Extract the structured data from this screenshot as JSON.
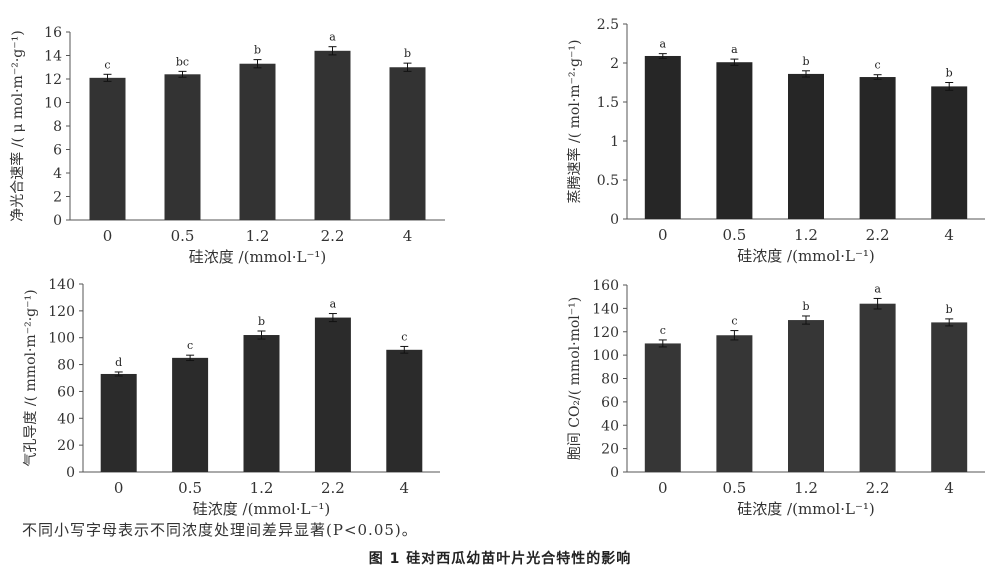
{
  "figure": {
    "note": "不同小写字母表示不同浓度处理间差异显著(P<0.05)。",
    "caption": "图 1   硅对西瓜幼苗叶片光合特性的影响"
  },
  "chart_data": [
    {
      "type": "bar",
      "xlabel": "硅浓度 /(mmol·L⁻¹)",
      "ylabel": "净光合速率 /( μ mol·m⁻²·g⁻¹)",
      "categories": [
        "0",
        "0.5",
        "1.2",
        "2.2",
        "4"
      ],
      "values": [
        12.1,
        12.4,
        13.3,
        14.4,
        13.0
      ],
      "errors": [
        0.3,
        0.25,
        0.35,
        0.35,
        0.35
      ],
      "letters": [
        "c",
        "bc",
        "b",
        "a",
        "b"
      ],
      "ylim": [
        0,
        16
      ],
      "yticks": [
        "0",
        "2",
        "4",
        "6",
        "8",
        "10",
        "12",
        "14",
        "16"
      ],
      "color": "#333333"
    },
    {
      "type": "bar",
      "xlabel": "硅浓度 /(mmol·L⁻¹)",
      "ylabel": "蒸腾速率 /( mol·m⁻²·g⁻¹)",
      "categories": [
        "0",
        "0.5",
        "1.2",
        "2.2",
        "4"
      ],
      "values": [
        2.09,
        2.01,
        1.86,
        1.82,
        1.7
      ],
      "errors": [
        0.03,
        0.04,
        0.04,
        0.03,
        0.05
      ],
      "letters": [
        "a",
        "a",
        "b",
        "c",
        "b"
      ],
      "ylim": [
        0,
        2.5
      ],
      "yticks": [
        "0",
        "0.5",
        "1",
        "1.5",
        "2",
        "2.5"
      ],
      "color": "#262626"
    },
    {
      "type": "bar",
      "xlabel": "硅浓度 /(mmol·L⁻¹)",
      "ylabel": "气孔导度 /( mmol·m⁻²·g⁻¹)",
      "categories": [
        "0",
        "0.5",
        "1.2",
        "2.2",
        "4"
      ],
      "values": [
        73,
        85,
        102,
        115,
        91
      ],
      "errors": [
        1.5,
        2,
        3,
        3,
        2.5
      ],
      "letters": [
        "d",
        "c",
        "b",
        "a",
        "c"
      ],
      "ylim": [
        0,
        140
      ],
      "yticks": [
        "0",
        "20",
        "40",
        "60",
        "80",
        "100",
        "120",
        "140"
      ],
      "color": "#2b2b2b"
    },
    {
      "type": "bar",
      "xlabel": "硅浓度 /(mmol·L⁻¹)",
      "ylabel": "胞间 CO₂/( mmol·mol⁻¹)",
      "categories": [
        "0",
        "0.5",
        "1.2",
        "2.2",
        "4"
      ],
      "values": [
        110,
        117,
        130,
        144,
        128
      ],
      "errors": [
        3,
        4,
        3.5,
        4.5,
        3
      ],
      "letters": [
        "c",
        "c",
        "b",
        "a",
        "b"
      ],
      "ylim": [
        0,
        160
      ],
      "yticks": [
        "0",
        "20",
        "40",
        "60",
        "80",
        "100",
        "120",
        "140",
        "160"
      ],
      "color": "#363636"
    }
  ]
}
